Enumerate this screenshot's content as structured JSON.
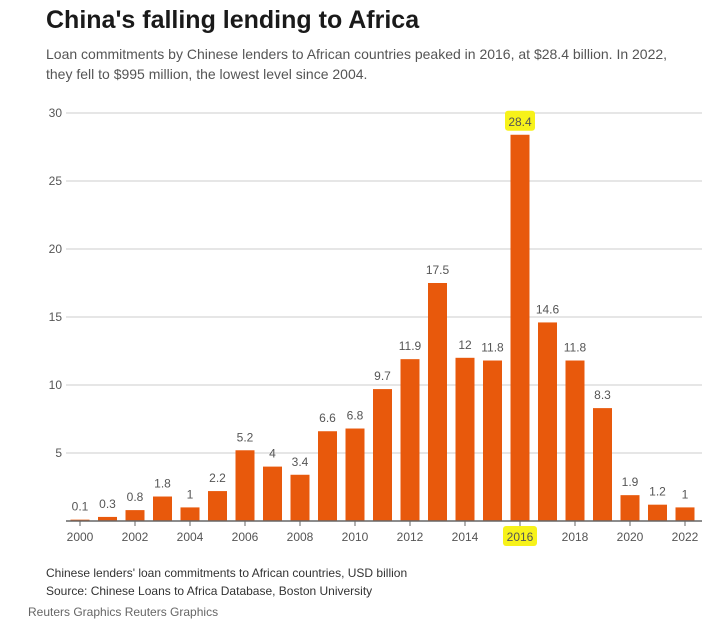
{
  "title": "China's falling lending to Africa",
  "subtitle": "Loan commitments by Chinese lenders to African countries peaked in 2016, at $28.4 billion. In 2022, they fell to $995 million, the lowest level since 2004.",
  "footnote": "Chinese lenders' loan commitments to African countries, USD billion",
  "source": "Source: Chinese Loans to Africa Database, Boston University",
  "credit": "Reuters Graphics Reuters Graphics",
  "colors": {
    "bar": "#e8590c",
    "highlight": "#f7f21a",
    "grid": "#cccccc",
    "axis": "#666666"
  },
  "chart_data": {
    "type": "bar",
    "title": "China's falling lending to Africa",
    "categories": [
      "2000",
      "2001",
      "2002",
      "2003",
      "2004",
      "2005",
      "2006",
      "2007",
      "2008",
      "2009",
      "2010",
      "2011",
      "2012",
      "2013",
      "2014",
      "2015",
      "2016",
      "2017",
      "2018",
      "2019",
      "2020",
      "2021",
      "2022"
    ],
    "values": [
      0.1,
      0.3,
      0.8,
      1.8,
      1,
      2.2,
      5.2,
      4,
      3.4,
      6.6,
      6.8,
      9.7,
      11.9,
      17.5,
      12,
      11.8,
      28.4,
      14.6,
      11.8,
      8.3,
      1.9,
      1.2,
      1
    ],
    "data_labels": [
      "0.1",
      "0.3",
      "0.8",
      "1.8",
      "1",
      "2.2",
      "5.2",
      "4",
      "3.4",
      "6.6",
      "6.8",
      "9.7",
      "11.9",
      "17.5",
      "12",
      "11.8",
      "28.4",
      "14.6",
      "11.8",
      "8.3",
      "1.9",
      "1.2",
      "1"
    ],
    "x_tick_labels": [
      "2000",
      "2002",
      "2004",
      "2006",
      "2008",
      "2010",
      "2012",
      "2014",
      "2016",
      "2018",
      "2020",
      "2022"
    ],
    "y_ticks": [
      5,
      10,
      15,
      20,
      25,
      30
    ],
    "ylim": [
      0,
      30
    ],
    "highlighted_category": "2016",
    "grid": true,
    "xlabel": "",
    "ylabel": ""
  }
}
